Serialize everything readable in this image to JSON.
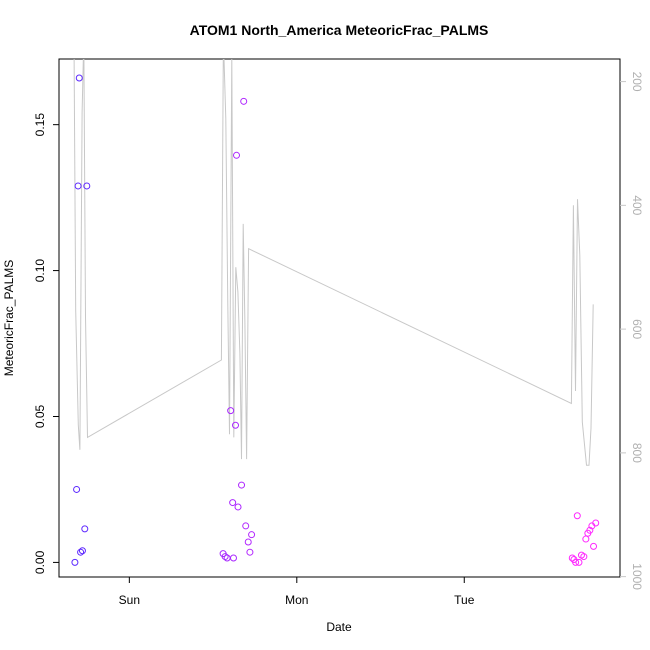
{
  "chart_data": {
    "type": "scatter",
    "title": "ATOM1 North_America MeteoricFrac_PALMS",
    "xlabel": "Date",
    "ylabel": "MeteoricFrac_PALMS",
    "x_unit": "days",
    "xlim": [
      -0.42,
      2.93
    ],
    "ylim": [
      -0.005,
      0.1725
    ],
    "x_ticks": [
      {
        "value": 0,
        "label": "Sun"
      },
      {
        "value": 1,
        "label": "Mon"
      },
      {
        "value": 2,
        "label": "Tue"
      }
    ],
    "y_ticks": [
      {
        "value": 0.0,
        "label": "0.00"
      },
      {
        "value": 0.05,
        "label": "0.05"
      },
      {
        "value": 0.1,
        "label": "0.10"
      },
      {
        "value": 0.15,
        "label": "0.15"
      }
    ],
    "y2_ticks": [
      {
        "value": 200,
        "label": "200"
      },
      {
        "value": 400,
        "label": "400"
      },
      {
        "value": 600,
        "label": "600"
      },
      {
        "value": 800,
        "label": "800"
      },
      {
        "value": 1000,
        "label": "1000"
      }
    ],
    "y2lim": [
      1000.6,
      163.5
    ],
    "y2_color": "#c8c8c8",
    "grid": false,
    "series": [
      {
        "color_dark": "#5a28ff",
        "color_light": "#ff28ff",
        "points": [
          {
            "x": -0.325,
            "y": 0.0
          },
          {
            "x": -0.315,
            "y": 0.025
          },
          {
            "x": -0.306,
            "y": 0.129
          },
          {
            "x": -0.299,
            "y": 0.166
          },
          {
            "x": -0.291,
            "y": 0.0035
          },
          {
            "x": -0.28,
            "y": 0.004
          },
          {
            "x": -0.266,
            "y": 0.0115
          },
          {
            "x": -0.254,
            "y": 0.129
          },
          {
            "x": 0.56,
            "y": 0.003
          },
          {
            "x": 0.572,
            "y": 0.002
          },
          {
            "x": 0.584,
            "y": 0.0015
          },
          {
            "x": 0.605,
            "y": 0.052
          },
          {
            "x": 0.617,
            "y": 0.0205
          },
          {
            "x": 0.622,
            "y": 0.0015
          },
          {
            "x": 0.634,
            "y": 0.047
          },
          {
            "x": 0.64,
            "y": 0.1395
          },
          {
            "x": 0.649,
            "y": 0.019
          },
          {
            "x": 0.67,
            "y": 0.0265
          },
          {
            "x": 0.683,
            "y": 0.158
          },
          {
            "x": 0.695,
            "y": 0.0125
          },
          {
            "x": 0.71,
            "y": 0.007
          },
          {
            "x": 0.72,
            "y": 0.0035
          },
          {
            "x": 0.73,
            "y": 0.0095
          },
          {
            "x": 2.645,
            "y": 0.0015
          },
          {
            "x": 2.655,
            "y": 0.001
          },
          {
            "x": 2.665,
            "y": 0.0
          },
          {
            "x": 2.675,
            "y": 0.016
          },
          {
            "x": 2.685,
            "y": 0.0
          },
          {
            "x": 2.7,
            "y": 0.0025
          },
          {
            "x": 2.714,
            "y": 0.002
          },
          {
            "x": 2.726,
            "y": 0.008
          },
          {
            "x": 2.738,
            "y": 0.01
          },
          {
            "x": 2.75,
            "y": 0.011
          },
          {
            "x": 2.762,
            "y": 0.0125
          },
          {
            "x": 2.772,
            "y": 0.0055
          },
          {
            "x": 2.785,
            "y": 0.0135
          }
        ]
      },
      {
        "axis": "right",
        "color": "#c8c8c8",
        "points": [
          {
            "x": -0.33,
            "y": 160
          },
          {
            "x": -0.32,
            "y": 570
          },
          {
            "x": -0.305,
            "y": 755
          },
          {
            "x": -0.295,
            "y": 795
          },
          {
            "x": -0.282,
            "y": 250
          },
          {
            "x": -0.272,
            "y": 130
          },
          {
            "x": -0.262,
            "y": 580
          },
          {
            "x": -0.25,
            "y": 775
          },
          {
            "x": 0.55,
            "y": 650
          },
          {
            "x": 0.562,
            "y": 130
          },
          {
            "x": 0.576,
            "y": 260
          },
          {
            "x": 0.588,
            "y": 560
          },
          {
            "x": 0.598,
            "y": 770
          },
          {
            "x": 0.612,
            "y": 160
          },
          {
            "x": 0.624,
            "y": 775
          },
          {
            "x": 0.636,
            "y": 500
          },
          {
            "x": 0.648,
            "y": 540
          },
          {
            "x": 0.66,
            "y": 640
          },
          {
            "x": 0.67,
            "y": 810
          },
          {
            "x": 0.68,
            "y": 430
          },
          {
            "x": 0.69,
            "y": 590
          },
          {
            "x": 0.7,
            "y": 810
          },
          {
            "x": 0.712,
            "y": 470
          },
          {
            "x": 2.64,
            "y": 720
          },
          {
            "x": 2.652,
            "y": 400
          },
          {
            "x": 2.664,
            "y": 700
          },
          {
            "x": 2.676,
            "y": 390
          },
          {
            "x": 2.69,
            "y": 480
          },
          {
            "x": 2.705,
            "y": 750
          },
          {
            "x": 2.73,
            "y": 820
          },
          {
            "x": 2.745,
            "y": 820
          },
          {
            "x": 2.757,
            "y": 760
          },
          {
            "x": 2.77,
            "y": 560
          }
        ]
      }
    ]
  }
}
